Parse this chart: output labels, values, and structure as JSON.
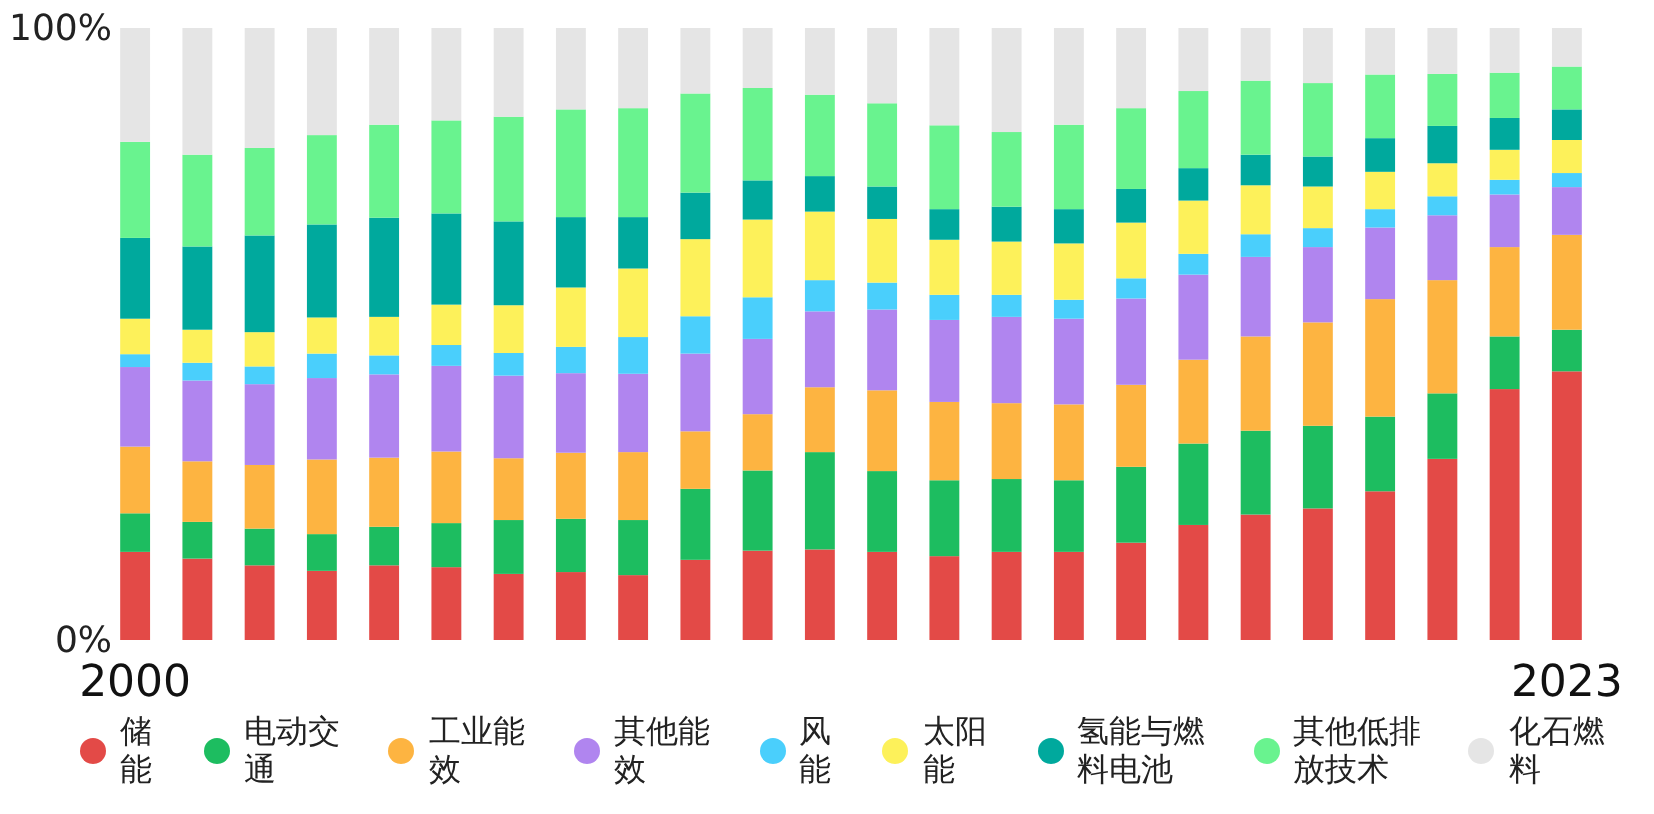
{
  "chart_data": {
    "type": "bar",
    "stacked": true,
    "legend": "bottom",
    "grid": false,
    "categories": [
      "2000",
      null,
      null,
      null,
      null,
      null,
      null,
      null,
      null,
      null,
      null,
      null,
      null,
      null,
      null,
      null,
      null,
      null,
      null,
      null,
      null,
      null,
      null,
      "2023"
    ],
    "ylim": [
      0,
      100
    ],
    "yticks": [
      {
        "value": 0,
        "label": "0%"
      },
      {
        "value": 100,
        "label": "100%"
      }
    ],
    "series": [
      {
        "name": "储能",
        "color": "#e34a47",
        "values": [
          14.4,
          13.3,
          12.2,
          11.3,
          12.2,
          11.9,
          10.8,
          11.1,
          10.6,
          13.1,
          14.6,
          14.8,
          14.4,
          13.7,
          14.4,
          14.4,
          15.9,
          18.8,
          20.5,
          21.5,
          24.3,
          29.6,
          41.0,
          43.9
        ]
      },
      {
        "name": "电动交通",
        "color": "#1dbd60",
        "values": [
          6.3,
          6.0,
          6.0,
          6.0,
          6.3,
          7.2,
          8.8,
          8.7,
          9.0,
          11.6,
          13.1,
          15.9,
          13.2,
          12.4,
          11.9,
          11.7,
          12.4,
          13.3,
          13.7,
          13.5,
          12.2,
          10.7,
          8.6,
          6.8
        ]
      },
      {
        "name": "工业能效",
        "color": "#fdb441",
        "values": [
          10.9,
          9.9,
          10.4,
          12.2,
          11.3,
          11.7,
          10.1,
          10.8,
          11.1,
          9.4,
          9.2,
          10.6,
          13.2,
          12.8,
          12.4,
          12.4,
          13.4,
          13.7,
          15.4,
          16.9,
          19.2,
          18.5,
          14.6,
          15.5
        ]
      },
      {
        "name": "其他能效",
        "color": "#b085ef",
        "values": [
          13.0,
          13.2,
          13.2,
          13.3,
          13.6,
          14.0,
          13.5,
          13.0,
          12.8,
          12.7,
          12.3,
          12.4,
          13.2,
          13.4,
          14.1,
          14.0,
          14.1,
          13.9,
          13.0,
          12.3,
          11.7,
          10.6,
          8.6,
          7.8
        ]
      },
      {
        "name": "风能",
        "color": "#4acffc",
        "values": [
          2.1,
          2.9,
          2.9,
          4.0,
          3.1,
          3.4,
          3.7,
          4.3,
          6.0,
          6.1,
          6.8,
          5.1,
          4.4,
          4.1,
          3.6,
          3.1,
          3.3,
          3.4,
          3.7,
          3.1,
          3.0,
          3.1,
          2.4,
          2.3
        ]
      },
      {
        "name": "太阳能",
        "color": "#fdf15a",
        "values": [
          5.8,
          5.4,
          5.6,
          5.9,
          6.3,
          6.6,
          7.8,
          9.7,
          11.2,
          12.6,
          12.7,
          11.2,
          10.4,
          9.0,
          8.7,
          9.2,
          9.1,
          8.7,
          8.0,
          6.8,
          6.1,
          5.4,
          4.9,
          5.4
        ]
      },
      {
        "name": "氢能与燃料电池",
        "color": "#00a99d",
        "values": [
          13.2,
          13.6,
          15.8,
          15.2,
          16.2,
          14.9,
          13.7,
          11.5,
          8.4,
          7.6,
          6.4,
          5.8,
          5.3,
          5.0,
          5.7,
          5.6,
          5.5,
          5.3,
          5.0,
          4.9,
          5.5,
          6.1,
          5.2,
          5.0
        ]
      },
      {
        "name": "其他低排放技术",
        "color": "#69f38f",
        "values": [
          15.7,
          15.0,
          14.3,
          14.6,
          15.2,
          15.2,
          17.1,
          17.6,
          17.8,
          16.2,
          15.1,
          13.3,
          13.6,
          13.7,
          12.2,
          13.8,
          13.2,
          12.6,
          12.1,
          12.0,
          10.4,
          8.5,
          7.4,
          7.0
        ]
      },
      {
        "name": "化石燃料",
        "color": "#e5e5e5",
        "values": [
          18.6,
          20.7,
          19.6,
          17.5,
          15.8,
          15.1,
          14.5,
          13.3,
          13.1,
          10.7,
          9.8,
          10.9,
          12.3,
          15.9,
          17.0,
          15.8,
          13.1,
          10.3,
          8.6,
          9.0,
          7.6,
          7.5,
          7.3,
          6.3
        ]
      }
    ]
  }
}
